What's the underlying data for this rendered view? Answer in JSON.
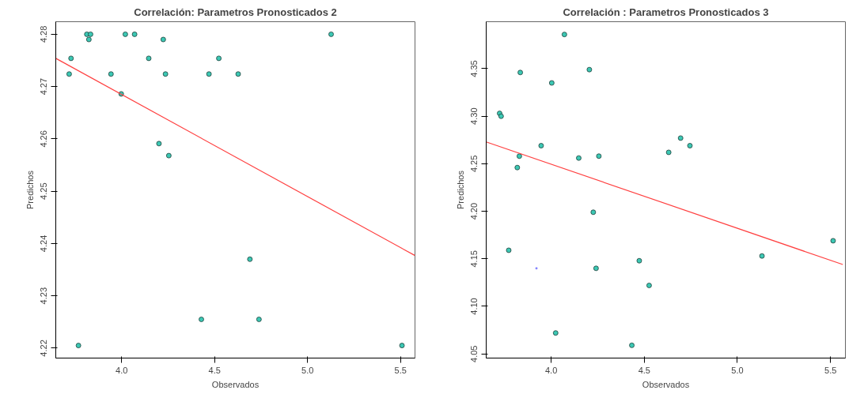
{
  "chart_data": [
    {
      "type": "scatter",
      "title": "Correlación: Parametros Pronosticados 2",
      "xlabel": "Observados",
      "ylabel": "Predichos",
      "marker": "circle",
      "xlim": [
        3.646,
        5.578
      ],
      "ylim": [
        4.2181,
        4.2824
      ],
      "xticks": [
        {
          "value": 4.0,
          "label": "4.0"
        },
        {
          "value": 4.5,
          "label": "4.5"
        },
        {
          "value": 5.0,
          "label": "5.0"
        },
        {
          "value": 5.5,
          "label": "5.5"
        }
      ],
      "yticks": [
        {
          "value": 4.22,
          "label": "4.22"
        },
        {
          "value": 4.23,
          "label": "4.23"
        },
        {
          "value": 4.24,
          "label": "4.24"
        },
        {
          "value": 4.25,
          "label": "4.25"
        },
        {
          "value": 4.26,
          "label": "4.26"
        },
        {
          "value": 4.27,
          "label": "4.27"
        },
        {
          "value": 4.28,
          "label": "4.28"
        }
      ],
      "series": [
        {
          "color": "#3cc8b4",
          "x": [
            3.718,
            3.728,
            3.813,
            3.833,
            3.824,
            3.943,
            3.998,
            4.02,
            4.07,
            4.146,
            4.224,
            4.236,
            4.201,
            4.254,
            4.429,
            4.47,
            3.768,
            4.523,
            4.627,
            4.69,
            4.739,
            5.127,
            5.508
          ],
          "values": [
            4.2724,
            4.2754,
            4.28,
            4.28,
            4.279,
            4.2724,
            4.2686,
            4.28,
            4.28,
            4.2754,
            4.279,
            4.2724,
            4.2591,
            4.2568,
            4.2255,
            4.2724,
            4.2205,
            4.2754,
            4.2724,
            4.237,
            4.2255,
            4.28,
            4.2205
          ]
        },
        {
          "type": "line",
          "color": "#ff4040",
          "marker": "none",
          "x": [
            3.646,
            5.578
          ],
          "values": [
            4.2754,
            4.2377
          ]
        }
      ]
    },
    {
      "type": "scatter",
      "title": "Correlación : Parametros Pronosticados 3",
      "xlabel": "Observados",
      "ylabel": "Predichos",
      "marker": "circle",
      "xlim": [
        3.651,
        5.58
      ],
      "ylim": [
        4.0456,
        4.3994
      ],
      "xticks": [
        {
          "value": 4.0,
          "label": "4.0"
        },
        {
          "value": 4.5,
          "label": "4.5"
        },
        {
          "value": 5.0,
          "label": "5.0"
        },
        {
          "value": 5.5,
          "label": "5.5"
        }
      ],
      "yticks": [
        4.05,
        {
          "value": 4.1,
          "label": "4.10"
        },
        4.15,
        {
          "value": 4.2,
          "label": "4.20"
        },
        4.25,
        {
          "value": 4.3,
          "label": "4.30"
        },
        4.35
      ],
      "series": [
        {
          "color": "#3cc8b4",
          "x": [
            3.723,
            3.731,
            3.834,
            3.829,
            3.818,
            3.772,
            3.946,
            4.003,
            4.071,
            4.148,
            4.205,
            4.256,
            4.226,
            4.241,
            4.024,
            4.433,
            4.473,
            4.526,
            4.631,
            4.695,
            4.745,
            5.132,
            5.514
          ],
          "values": [
            4.303,
            4.3,
            4.346,
            4.258,
            4.246,
            4.159,
            4.269,
            4.335,
            4.386,
            4.256,
            4.349,
            4.258,
            4.199,
            4.14,
            4.072,
            4.059,
            4.148,
            4.122,
            4.262,
            4.277,
            4.269,
            4.153,
            4.169
          ]
        },
        {
          "color": "#4040ff",
          "marker": "cross",
          "x": [
            3.921
          ],
          "values": [
            4.14
          ]
        },
        {
          "type": "line",
          "color": "#ff4040",
          "marker": "none",
          "x": [
            3.651,
            5.566
          ],
          "values": [
            4.273,
            4.144
          ]
        }
      ]
    }
  ]
}
